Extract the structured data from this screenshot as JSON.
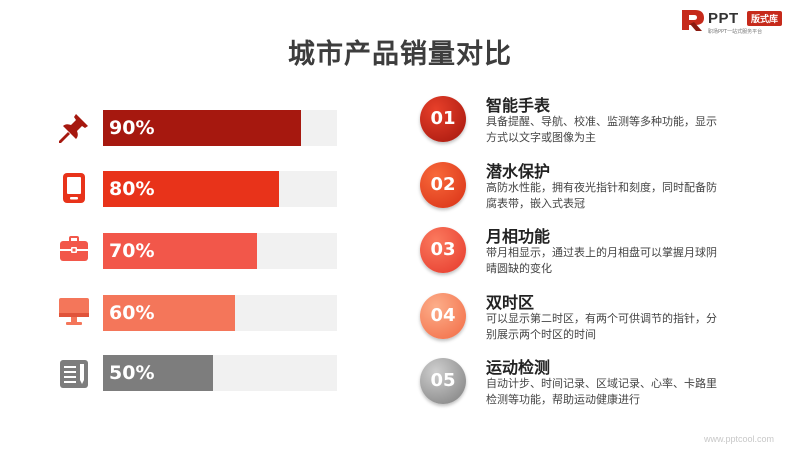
{
  "logo": {
    "brand": "PPT",
    "tag": "版式库",
    "tagline": "职场PPT一站式服务平台",
    "color": "#c62a1b"
  },
  "title": "城市产品销量对比",
  "bars": [
    {
      "percent": 90,
      "label": "90%",
      "color": "#a6180f",
      "icon": "pushpin-icon"
    },
    {
      "percent": 80,
      "label": "80%",
      "color": "#e8331a",
      "icon": "tablet-icon"
    },
    {
      "percent": 70,
      "label": "70%",
      "color": "#f2574a",
      "icon": "briefcase-icon"
    },
    {
      "percent": 60,
      "label": "60%",
      "color": "#f4765a",
      "icon": "monitor-icon"
    },
    {
      "percent": 50,
      "label": "50%",
      "color": "#7d7d7d",
      "icon": "document-icon"
    }
  ],
  "features": [
    {
      "num": "01",
      "title": "智能手表",
      "desc": "具备提醒、导航、校准、监测等多种功能，显示方式以文字或图像为主",
      "color_light": "#e8402a",
      "color_dark": "#a3160d"
    },
    {
      "num": "02",
      "title": "潜水保护",
      "desc": "高防水性能，拥有夜光指针和刻度，同时配备防腐表带，嵌入式表冠",
      "color_light": "#f8693a",
      "color_dark": "#d83016"
    },
    {
      "num": "03",
      "title": "月相功能",
      "desc": "带月相显示，通过表上的月相盘可以掌握月球阴晴圆缺的变化",
      "color_light": "#fb7a5e",
      "color_dark": "#e5382b"
    },
    {
      "num": "04",
      "title": "双时区",
      "desc": "可以显示第二时区，有两个可供调节的指针，分别展示两个时区的时间",
      "color_light": "#fcae8a",
      "color_dark": "#f26a44"
    },
    {
      "num": "05",
      "title": "运动检测",
      "desc": "自动计步、时间记录、区域记录、心率、卡路里检测等功能，帮助运动健康进行",
      "color_light": "#cfcfcf",
      "color_dark": "#7d7d7d"
    }
  ],
  "watermark": "www.pptcool.com"
}
